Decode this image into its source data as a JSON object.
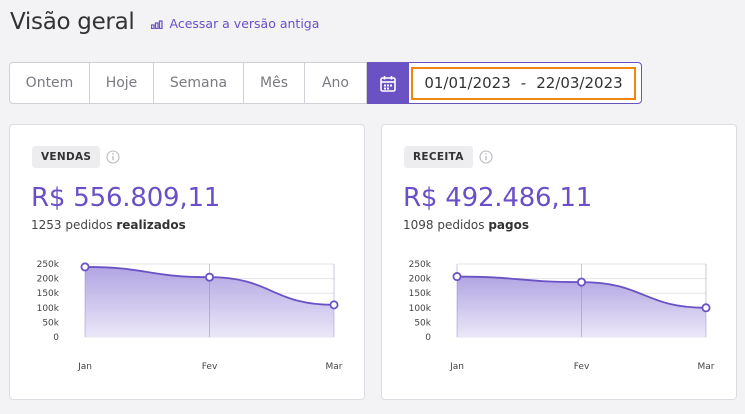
{
  "header": {
    "title": "Visão geral",
    "old_version_link": "Acessar a versão antiga"
  },
  "toolbar": {
    "periods": [
      "Ontem",
      "Hoje",
      "Semana",
      "Mês",
      "Ano"
    ],
    "date_start": "01/01/2023",
    "date_separator": "-",
    "date_end": "22/03/2023"
  },
  "colors": {
    "accent": "#6b52c4",
    "highlight": "#f0850f",
    "area_top": "#a99be0",
    "area_bottom": "#e9e5f7"
  },
  "cards": [
    {
      "badge": "VENDAS",
      "amount": "R$ 556.809,11",
      "count": "1253 pedidos",
      "count_suffix": "realizados"
    },
    {
      "badge": "RECEITA",
      "amount": "R$ 492.486,11",
      "count": "1098 pedidos",
      "count_suffix": "pagos"
    }
  ],
  "chart_data": [
    {
      "type": "area",
      "title": "",
      "categories": [
        "Jan",
        "Fev",
        "Mar"
      ],
      "series": [
        {
          "values": [
            240000,
            205000,
            110000
          ]
        }
      ],
      "yticks": [
        0,
        50000,
        100000,
        150000,
        200000,
        250000
      ],
      "ytick_labels": [
        "0",
        "50k",
        "100k",
        "150k",
        "200k",
        "250k"
      ],
      "ylim": [
        0,
        250000
      ],
      "grid": true
    },
    {
      "type": "area",
      "title": "",
      "categories": [
        "Jan",
        "Fev",
        "Mar"
      ],
      "series": [
        {
          "values": [
            207000,
            188000,
            100000
          ]
        }
      ],
      "yticks": [
        0,
        50000,
        100000,
        150000,
        200000,
        250000
      ],
      "ytick_labels": [
        "0",
        "50k",
        "100k",
        "150k",
        "200k",
        "250k"
      ],
      "ylim": [
        0,
        250000
      ],
      "grid": true
    }
  ]
}
